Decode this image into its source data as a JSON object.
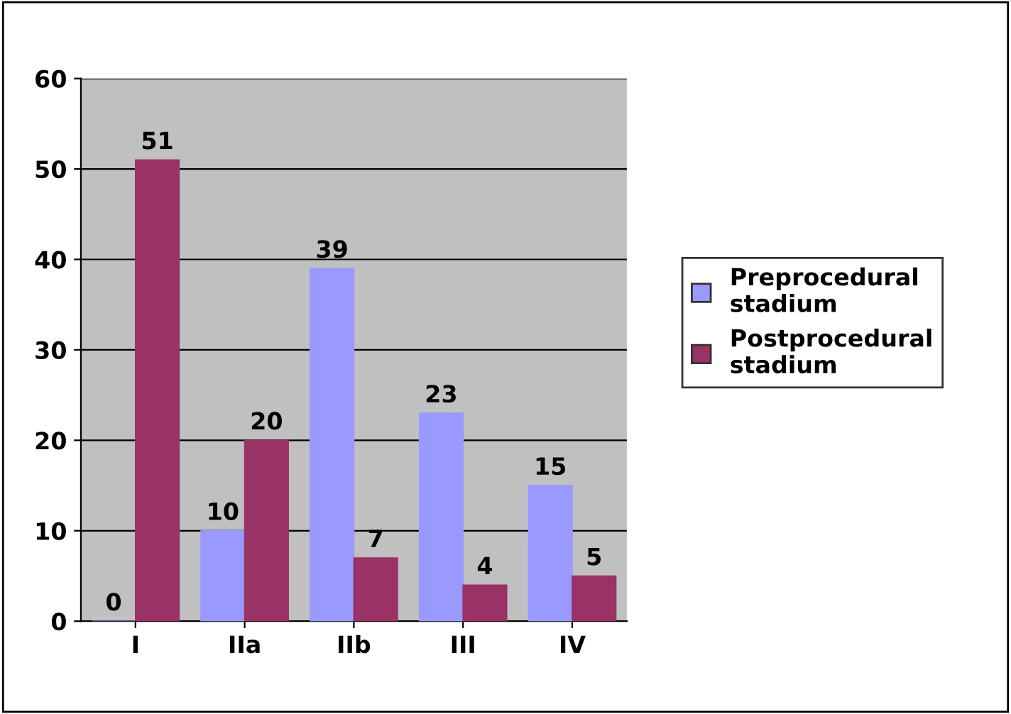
{
  "chart_data": {
    "type": "bar",
    "categories": [
      "I",
      "IIa",
      "IIb",
      "III",
      "IV"
    ],
    "series": [
      {
        "name": "Preprocedural stadium",
        "color": "#9999ff",
        "values": [
          0,
          10,
          39,
          23,
          15
        ]
      },
      {
        "name": "Postprocedural stadium",
        "color": "#993366",
        "values": [
          51,
          20,
          7,
          4,
          5
        ]
      }
    ],
    "ylim": [
      0,
      60
    ],
    "yticks": [
      0,
      10,
      20,
      30,
      40,
      50,
      60
    ],
    "grid": "y",
    "legend": "right",
    "data_labels": true
  }
}
